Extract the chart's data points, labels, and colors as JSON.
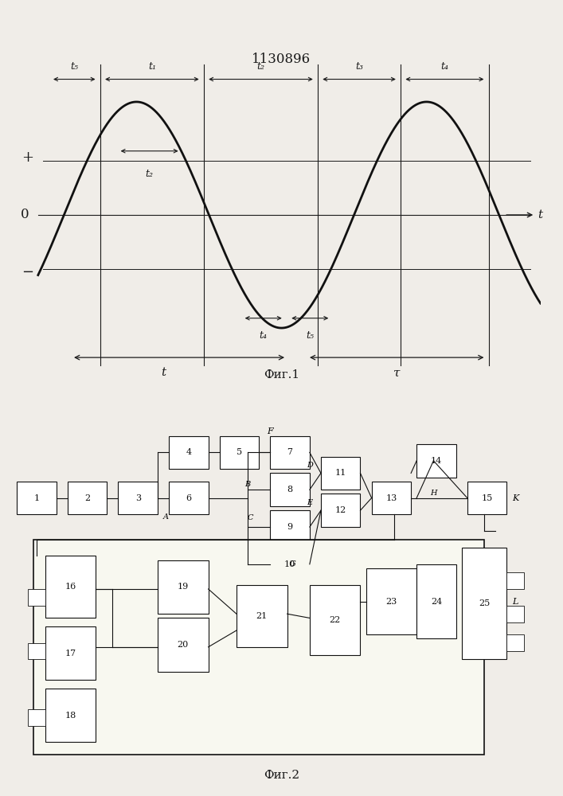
{
  "title": "1130896",
  "fig1_caption": "Фиг.1",
  "fig2_caption": "Фиг.2",
  "background_color": "#f0ede8",
  "line_color": "#1a1a1a",
  "sine_color": "#111111"
}
